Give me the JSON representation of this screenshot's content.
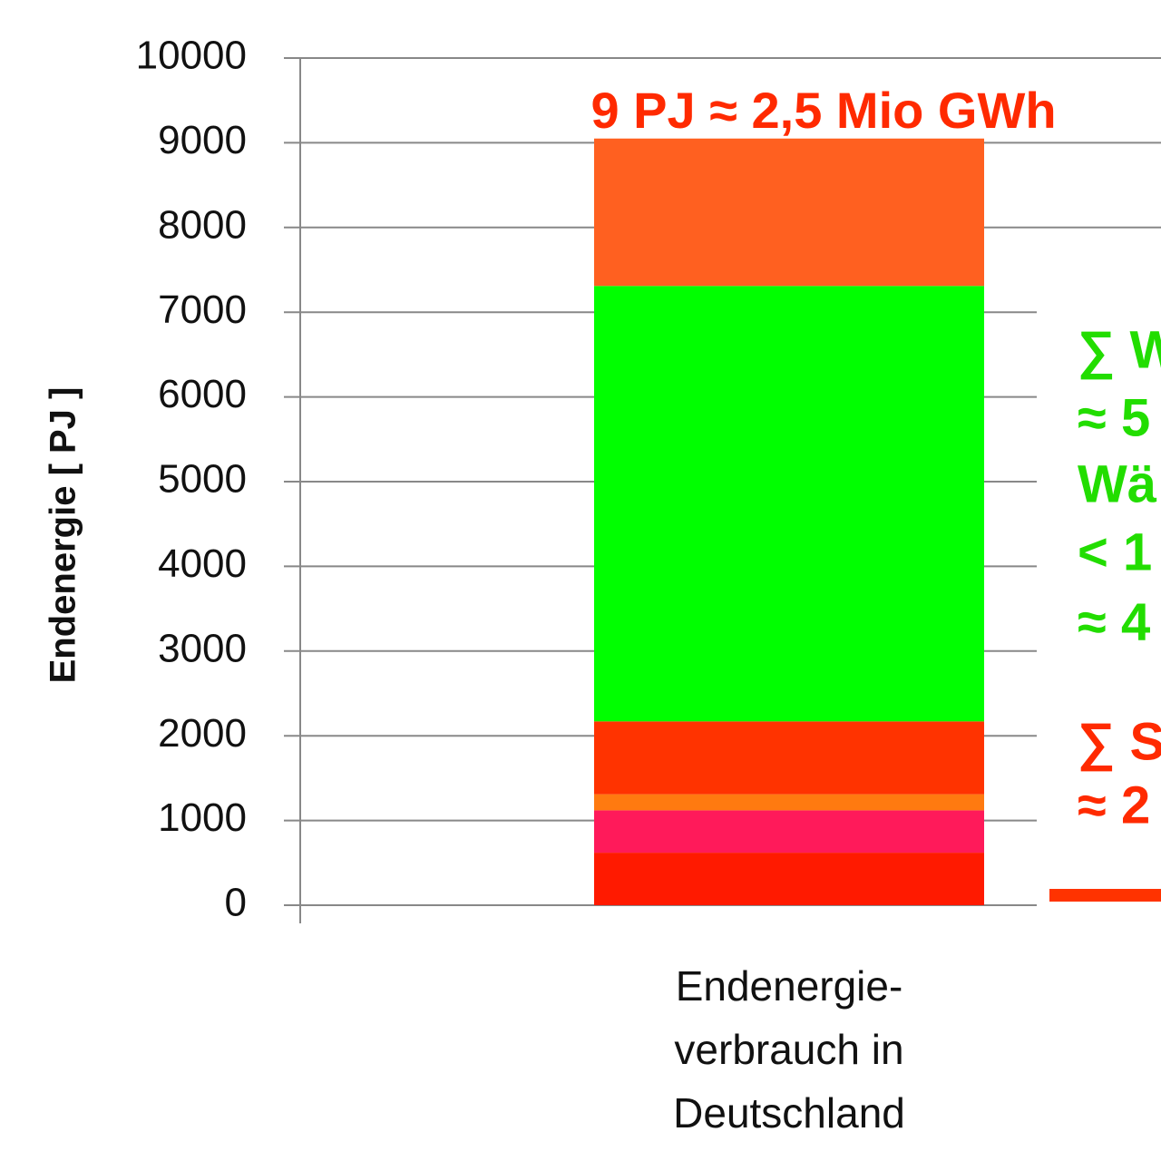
{
  "chart_data": {
    "type": "stacked-bar",
    "y_label": "Endenergie [ PJ ]",
    "categories": [
      "Endenergie-verbrauch in Deutschland"
    ],
    "series": [
      {
        "color": "#ff1a00",
        "values": [
          620
        ]
      },
      {
        "color": "#ff1a5a",
        "values": [
          500
        ]
      },
      {
        "color": "#ff7a10",
        "values": [
          190
        ]
      },
      {
        "color": "#ff3300",
        "values": [
          860
        ]
      },
      {
        "color": "#00ff00",
        "values": [
          5140
        ]
      },
      {
        "color": "#ff6020",
        "values": [
          1740
        ]
      }
    ],
    "ylim": [
      0,
      10000
    ],
    "yticks": [
      0,
      1000,
      2000,
      3000,
      4000,
      5000,
      6000,
      7000,
      8000,
      9000,
      10000
    ],
    "grid": true,
    "top_annotation": {
      "text": "9 PJ ≈ 2,5 Mio GWh",
      "color": "#ff2a00"
    },
    "side_annotations": [
      {
        "text": "∑ W",
        "color": "#22dd00"
      },
      {
        "text": "≈ 5",
        "color": "#22dd00"
      },
      {
        "text": "Wä",
        "color": "#22dd00"
      },
      {
        "text": "< 1",
        "color": "#22dd00"
      },
      {
        "text": "≈ 4",
        "color": "#22dd00"
      },
      {
        "text": "∑ S",
        "color": "#ff2a00"
      },
      {
        "text": "≈ 2",
        "color": "#ff2a00"
      }
    ]
  }
}
